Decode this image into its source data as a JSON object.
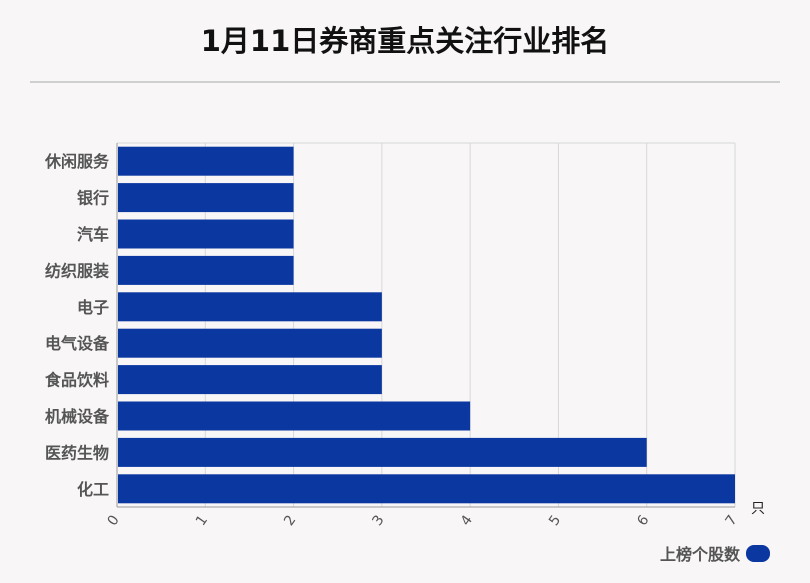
{
  "title": "1月11日券商重点关注行业排名",
  "unit": "只",
  "legend_label": "上榜个股数",
  "colors": {
    "bar": "#0b37a0",
    "grid": "#d8d8d8",
    "axis": "#999999",
    "text": "#555555"
  },
  "chart_data": {
    "type": "bar",
    "orientation": "horizontal",
    "categories": [
      "休闲服务",
      "银行",
      "汽车",
      "纺织服装",
      "电子",
      "电气设备",
      "食品饮料",
      "机械设备",
      "医药生物",
      "化工"
    ],
    "values": [
      2,
      2,
      2,
      2,
      3,
      3,
      3,
      4,
      6,
      7
    ],
    "xlim": [
      0,
      7
    ],
    "xticks": [
      0,
      1,
      2,
      3,
      4,
      5,
      6,
      7
    ],
    "grid": true,
    "legend": "bottom-right"
  }
}
